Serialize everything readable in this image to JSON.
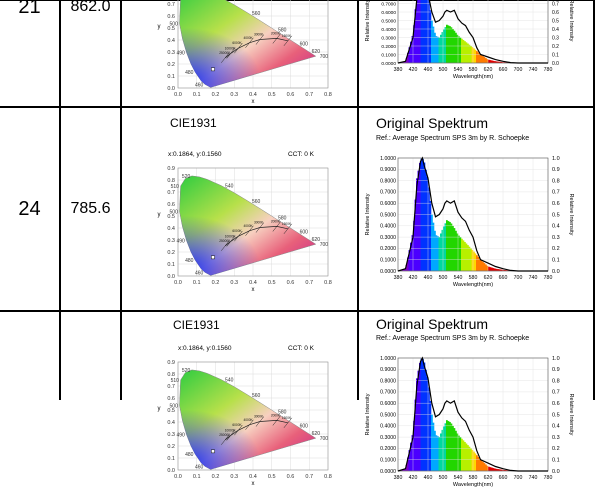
{
  "table": {
    "rows": [
      {
        "index": "21",
        "value": "862.0",
        "cie": {
          "title": "",
          "coords": "",
          "cct": ""
        },
        "spectrum": {
          "title": "",
          "ref": ""
        }
      },
      {
        "index": "24",
        "value": "785.6",
        "cie": {
          "title": "CIE1931",
          "coords": "x:0.1864, y:0.1560",
          "cct": "CCT: 0 K"
        },
        "spectrum": {
          "title": "Original Spektrum",
          "ref": "Ref.: Average Spectrum SPS 3m by R. Schoepke"
        }
      },
      {
        "index": "",
        "value": "",
        "cie": {
          "title": "CIE1931",
          "coords": "x:0.1864, y:0.1560",
          "cct": "CCT: 0 K"
        },
        "spectrum": {
          "title": "Original Spektrum",
          "ref": "Ref.: Average Spectrum SPS 3m by R. Schoepke"
        }
      }
    ]
  },
  "cie_axis": {
    "x_ticks": [
      "0.0",
      "0.1",
      "0.2",
      "0.3",
      "0.4",
      "0.5",
      "0.6",
      "0.7",
      "0.8"
    ],
    "y_ticks": [
      "0.0",
      "0.1",
      "0.2",
      "0.3",
      "0.4",
      "0.5",
      "0.6",
      "0.7",
      "0.8",
      "0.9"
    ],
    "x_label": "x",
    "y_label": "y",
    "wavelength_marks": [
      "460",
      "480",
      "490",
      "500",
      "510",
      "520",
      "540",
      "560",
      "580",
      "600",
      "620",
      "700"
    ],
    "cct_marks": [
      "25000K",
      "10000K",
      "6000K",
      "4000K",
      "3000K",
      "2000K",
      "1500K"
    ]
  },
  "spectrum_axis": {
    "x_ticks": [
      "380",
      "420",
      "460",
      "500",
      "540",
      "580",
      "620",
      "660",
      "700",
      "740",
      "780"
    ],
    "x_label": "Wavelength(nm)",
    "y_ticks_left": [
      "0.0000",
      "0.1000",
      "0.2000",
      "0.3000",
      "0.4000",
      "0.5000",
      "0.6000",
      "0.7000",
      "0.8000",
      "0.9000",
      "1.0000"
    ],
    "y_label_left": "Relative Intensity",
    "y_ticks_right": [
      "0.0",
      "0.1",
      "0.2",
      "0.3",
      "0.4",
      "0.5",
      "0.6",
      "0.7",
      "0.8",
      "0.9",
      "1.0"
    ],
    "y_label_right": "Relative Intensity"
  },
  "chart_data": [
    {
      "type": "line",
      "title": "Original Spektrum",
      "xlabel": "Wavelength(nm)",
      "ylabel": "Relative Intensity",
      "xlim": [
        380,
        780
      ],
      "ylim": [
        0,
        1
      ],
      "series": [
        {
          "values": [
            [
              380,
              0.0
            ],
            [
              400,
              0.02
            ],
            [
              420,
              0.3
            ],
            [
              430,
              0.75
            ],
            [
              440,
              0.97
            ],
            [
              445,
              1.0
            ],
            [
              450,
              0.93
            ],
            [
              460,
              0.82
            ],
            [
              470,
              0.6
            ],
            [
              480,
              0.48
            ],
            [
              490,
              0.5
            ],
            [
              500,
              0.55
            ],
            [
              505,
              0.6
            ],
            [
              510,
              0.62
            ],
            [
              520,
              0.6
            ],
            [
              530,
              0.62
            ],
            [
              540,
              0.52
            ],
            [
              550,
              0.47
            ],
            [
              560,
              0.44
            ],
            [
              570,
              0.36
            ],
            [
              580,
              0.3
            ],
            [
              590,
              0.18
            ],
            [
              600,
              0.1
            ],
            [
              620,
              0.07
            ],
            [
              640,
              0.04
            ],
            [
              660,
              0.02
            ],
            [
              680,
              0.005
            ],
            [
              700,
              0.0
            ],
            [
              780,
              0.0
            ]
          ]
        },
        {
          "values": [
            [
              380,
              0.0
            ],
            [
              400,
              0.02
            ],
            [
              420,
              0.35
            ],
            [
              430,
              0.82
            ],
            [
              440,
              0.99
            ],
            [
              445,
              1.0
            ],
            [
              450,
              0.96
            ],
            [
              460,
              0.8
            ],
            [
              470,
              0.5
            ],
            [
              480,
              0.32
            ],
            [
              490,
              0.3
            ],
            [
              500,
              0.38
            ],
            [
              510,
              0.45
            ],
            [
              520,
              0.43
            ],
            [
              530,
              0.38
            ],
            [
              540,
              0.32
            ],
            [
              560,
              0.25
            ],
            [
              580,
              0.18
            ],
            [
              600,
              0.1
            ],
            [
              620,
              0.04
            ],
            [
              640,
              0.02
            ],
            [
              660,
              0.01
            ],
            [
              700,
              0.0
            ],
            [
              780,
              0.0
            ]
          ]
        }
      ]
    },
    {
      "type": "scatter",
      "title": "CIE1931",
      "xlabel": "x",
      "ylabel": "y",
      "xlim": [
        0,
        0.8
      ],
      "ylim": [
        0,
        0.9
      ],
      "series": [
        {
          "name": "x:0.1864, y:0.1560",
          "values": [
            [
              0.1864,
              0.156
            ]
          ]
        }
      ]
    }
  ]
}
